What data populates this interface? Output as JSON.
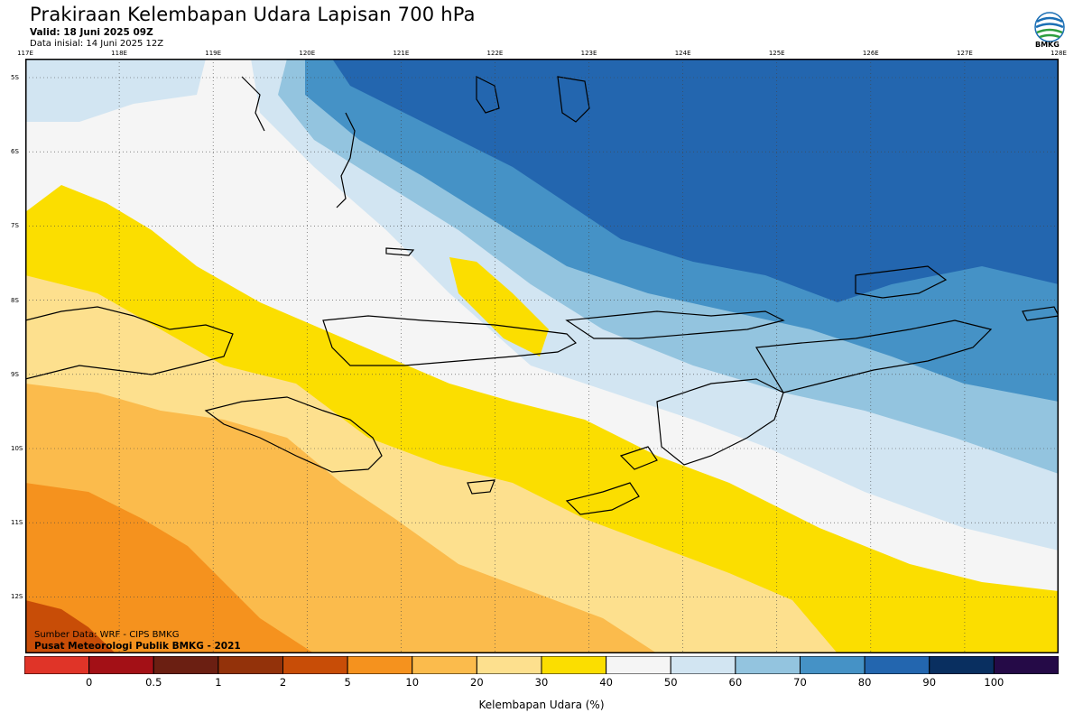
{
  "header": {
    "title": "Prakiraan Kelembapan Udara Lapisan 700 hPa",
    "valid": "Valid: 18 Juni 2025 09Z",
    "init": "Data inisial: 14 Juni 2025 12Z"
  },
  "logo": {
    "text": "BMKG",
    "icon": "bmkg-logo"
  },
  "axes": {
    "lon_labels": [
      "117E",
      "118E",
      "119E",
      "120E",
      "121E",
      "122E",
      "123E",
      "124E",
      "125E",
      "126E",
      "127E",
      "128E"
    ],
    "lat_labels": [
      "5S",
      "6S",
      "7S",
      "8S",
      "9S",
      "10S",
      "11S",
      "12S"
    ]
  },
  "credits": {
    "source": "Sumber Data: WRF - CIPS BMKG",
    "org": "Pusat Meteorologi Publik BMKG - 2021"
  },
  "colorbar": {
    "labels": [
      "0",
      "0.5",
      "1",
      "2",
      "5",
      "10",
      "20",
      "30",
      "40",
      "50",
      "60",
      "70",
      "80",
      "90",
      "100"
    ],
    "colors": [
      "#e03428",
      "#a31016",
      "#6b1f12",
      "#93320a",
      "#c84d07",
      "#f5921e",
      "#fbbb4c",
      "#fde08e",
      "#fbde00",
      "#f5f5f5",
      "#d2e5f2",
      "#93c4df",
      "#4592c6",
      "#2366af",
      "#092f60",
      "#250a47"
    ],
    "title": "Kelembapan Udara (%)"
  }
}
